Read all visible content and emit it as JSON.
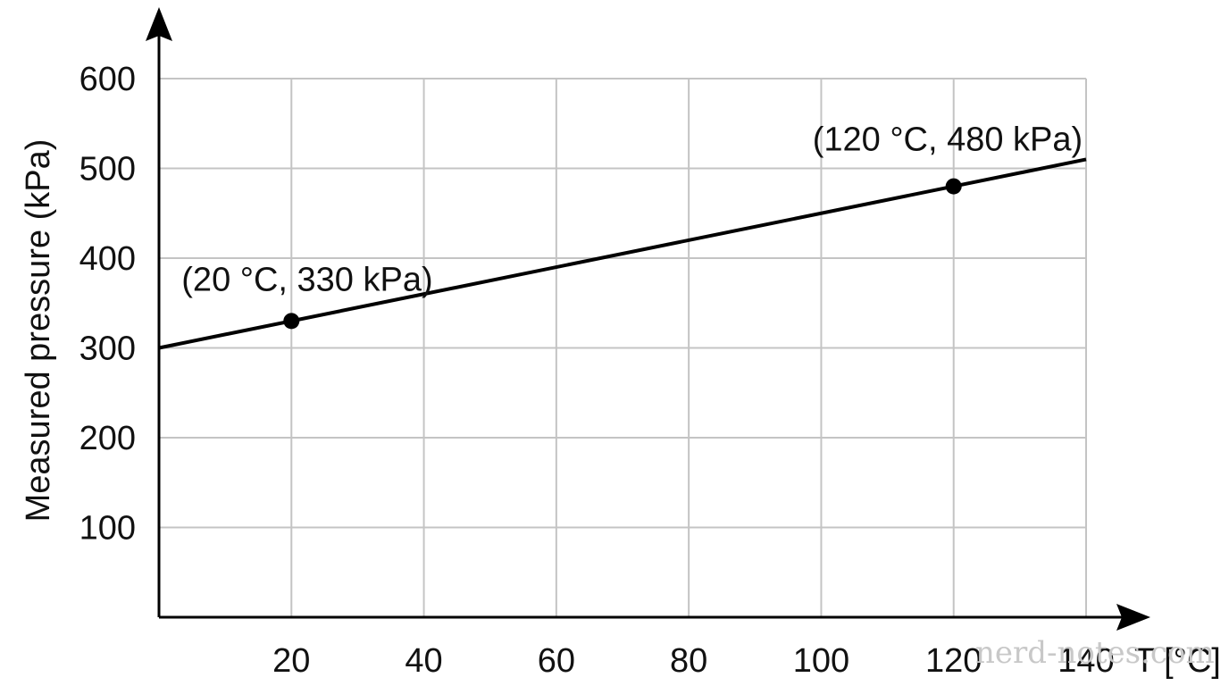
{
  "chart_data": {
    "type": "line",
    "xlabel": "T [°C]",
    "ylabel": "Measured pressure (kPa)",
    "xlim": [
      0,
      140
    ],
    "ylim": [
      0,
      600
    ],
    "x_ticks": [
      20,
      40,
      60,
      80,
      100,
      120,
      140
    ],
    "y_ticks": [
      100,
      200,
      300,
      400,
      500,
      600
    ],
    "grid": true,
    "series": [
      {
        "x": [
          0,
          140
        ],
        "values": [
          300,
          510
        ]
      }
    ],
    "points": [
      {
        "x": 20,
        "y": 330,
        "label": "(20 °C, 330 kPa)"
      },
      {
        "x": 120,
        "y": 480,
        "label": "(120 °C, 480 kPa)"
      }
    ],
    "line_color": "#000000",
    "grid_color": "#c4c4c4"
  },
  "watermark": "nerd-notes.com"
}
